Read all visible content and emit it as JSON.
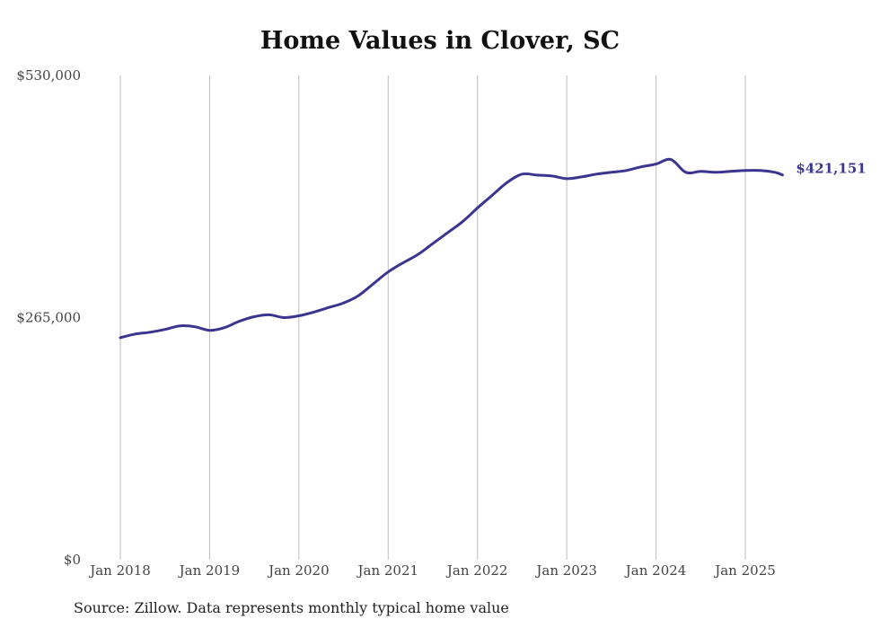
{
  "colors": {
    "line": "#3b3590",
    "grid": "#bdbdbd",
    "text": "#444444"
  },
  "chart_data": {
    "type": "line",
    "title": "Home Values in Clover, SC",
    "xlabel": "",
    "ylabel": "",
    "ylim": [
      0,
      530000
    ],
    "y_ticks": [
      0,
      265000,
      530000
    ],
    "y_tick_labels": [
      "$0",
      "$265,000",
      "$530,000"
    ],
    "x_ticks": [
      "2018-01",
      "2019-01",
      "2020-01",
      "2021-01",
      "2022-01",
      "2023-01",
      "2024-01",
      "2025-01"
    ],
    "x_tick_labels": [
      "Jan 2018",
      "Jan 2019",
      "Jan 2020",
      "Jan 2021",
      "Jan 2022",
      "Jan 2023",
      "Jan 2024",
      "Jan 2025"
    ],
    "grid": "vertical",
    "end_label": "$421,151",
    "series": [
      {
        "x": [
          "2018-01",
          "2018-03",
          "2018-05",
          "2018-07",
          "2018-09",
          "2018-11",
          "2019-01",
          "2019-03",
          "2019-05",
          "2019-07",
          "2019-09",
          "2019-11",
          "2020-01",
          "2020-03",
          "2020-05",
          "2020-07",
          "2020-09",
          "2020-11",
          "2021-01",
          "2021-03",
          "2021-05",
          "2021-07",
          "2021-09",
          "2021-11",
          "2022-01",
          "2022-03",
          "2022-05",
          "2022-07",
          "2022-09",
          "2022-11",
          "2023-01",
          "2023-03",
          "2023-05",
          "2023-07",
          "2023-09",
          "2023-11",
          "2024-01",
          "2024-03",
          "2024-05",
          "2024-07",
          "2024-09",
          "2024-11",
          "2025-01",
          "2025-03",
          "2025-05",
          "2025-06"
        ],
        "y": [
          243000,
          247000,
          249000,
          252000,
          256000,
          255000,
          251000,
          254000,
          261000,
          266000,
          268000,
          265000,
          267000,
          271000,
          276000,
          281000,
          289000,
          302000,
          315000,
          325000,
          334000,
          346000,
          358000,
          370000,
          385000,
          399000,
          413000,
          422000,
          421000,
          420000,
          417000,
          419000,
          422000,
          424000,
          426000,
          430000,
          433000,
          438000,
          424000,
          425000,
          424000,
          425000,
          426000,
          426000,
          424000,
          421151
        ]
      }
    ]
  },
  "footer": {
    "source": "Source: Zillow. Data represents monthly typical home value"
  }
}
